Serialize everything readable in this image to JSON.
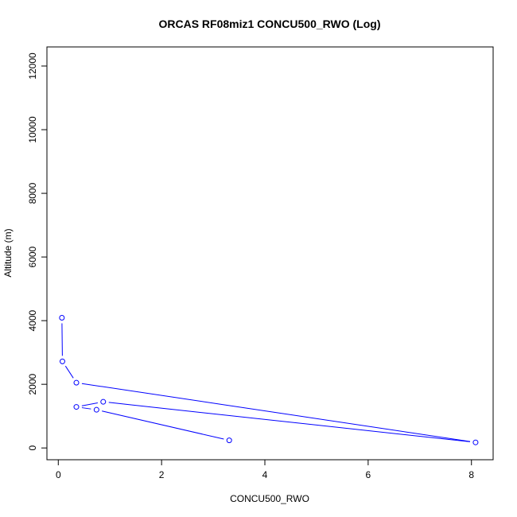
{
  "chart_data": {
    "type": "line",
    "title": "ORCAS RF08miz1 CONCU500_RWO (Log)",
    "xlabel": "CONCU500_RWO",
    "ylabel": "Altitude (m)",
    "xlim": [
      -0.22,
      8.42
    ],
    "ylim": [
      -370,
      12600
    ],
    "x_ticks": [
      0,
      2,
      4,
      6,
      8
    ],
    "y_ticks": [
      0,
      2000,
      4000,
      6000,
      8000,
      10000,
      12000
    ],
    "grid": false,
    "legend": "none",
    "series": [
      {
        "color": "#0000ff",
        "marker": "open-circle",
        "x": [
          0.07,
          0.08,
          0.35,
          8.08,
          0.87,
          0.35,
          0.74,
          3.31
        ],
        "y": [
          4090,
          2720,
          2050,
          175,
          1450,
          1290,
          1200,
          240
        ]
      }
    ]
  }
}
